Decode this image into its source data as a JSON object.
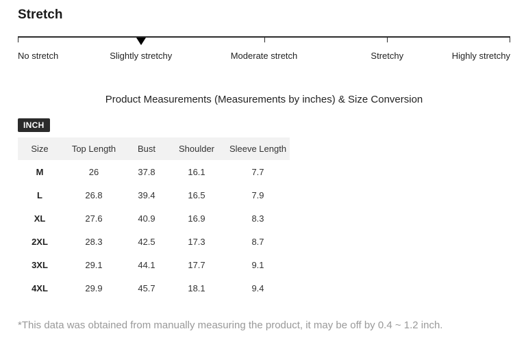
{
  "stretch": {
    "heading": "Stretch",
    "selected": "Slightly stretchy",
    "labels": [
      "No stretch",
      "Slightly stretchy",
      "Moderate stretch",
      "Stretchy",
      "Highly stretchy"
    ]
  },
  "measurements": {
    "title": "Product Measurements (Measurements by inches) & Size Conversion",
    "unit_badge": "INCH",
    "table": {
      "columns": [
        "Size",
        "Top Length",
        "Bust",
        "Shoulder",
        "Sleeve Length"
      ],
      "rows": [
        {
          "size": "M",
          "values": [
            "26",
            "37.8",
            "16.1",
            "7.7"
          ]
        },
        {
          "size": "L",
          "values": [
            "26.8",
            "39.4",
            "16.5",
            "7.9"
          ]
        },
        {
          "size": "XL",
          "values": [
            "27.6",
            "40.9",
            "16.9",
            "8.3"
          ]
        },
        {
          "size": "2XL",
          "values": [
            "28.3",
            "42.5",
            "17.3",
            "8.7"
          ]
        },
        {
          "size": "3XL",
          "values": [
            "29.1",
            "44.1",
            "17.7",
            "9.1"
          ]
        },
        {
          "size": "4XL",
          "values": [
            "29.9",
            "45.7",
            "18.1",
            "9.4"
          ]
        }
      ]
    },
    "footnote": "*This data was obtained from manually measuring the product, it may be off by 0.4 ~ 1.2 inch."
  },
  "colors": {
    "badge_bg": "#2b2b2b",
    "badge_text": "#ffffff",
    "table_header_bg": "#f2f2f2",
    "scale_line": "#2b2b2b",
    "marker": "#000000",
    "footnote_text": "#999999",
    "body_text": "#222222"
  }
}
